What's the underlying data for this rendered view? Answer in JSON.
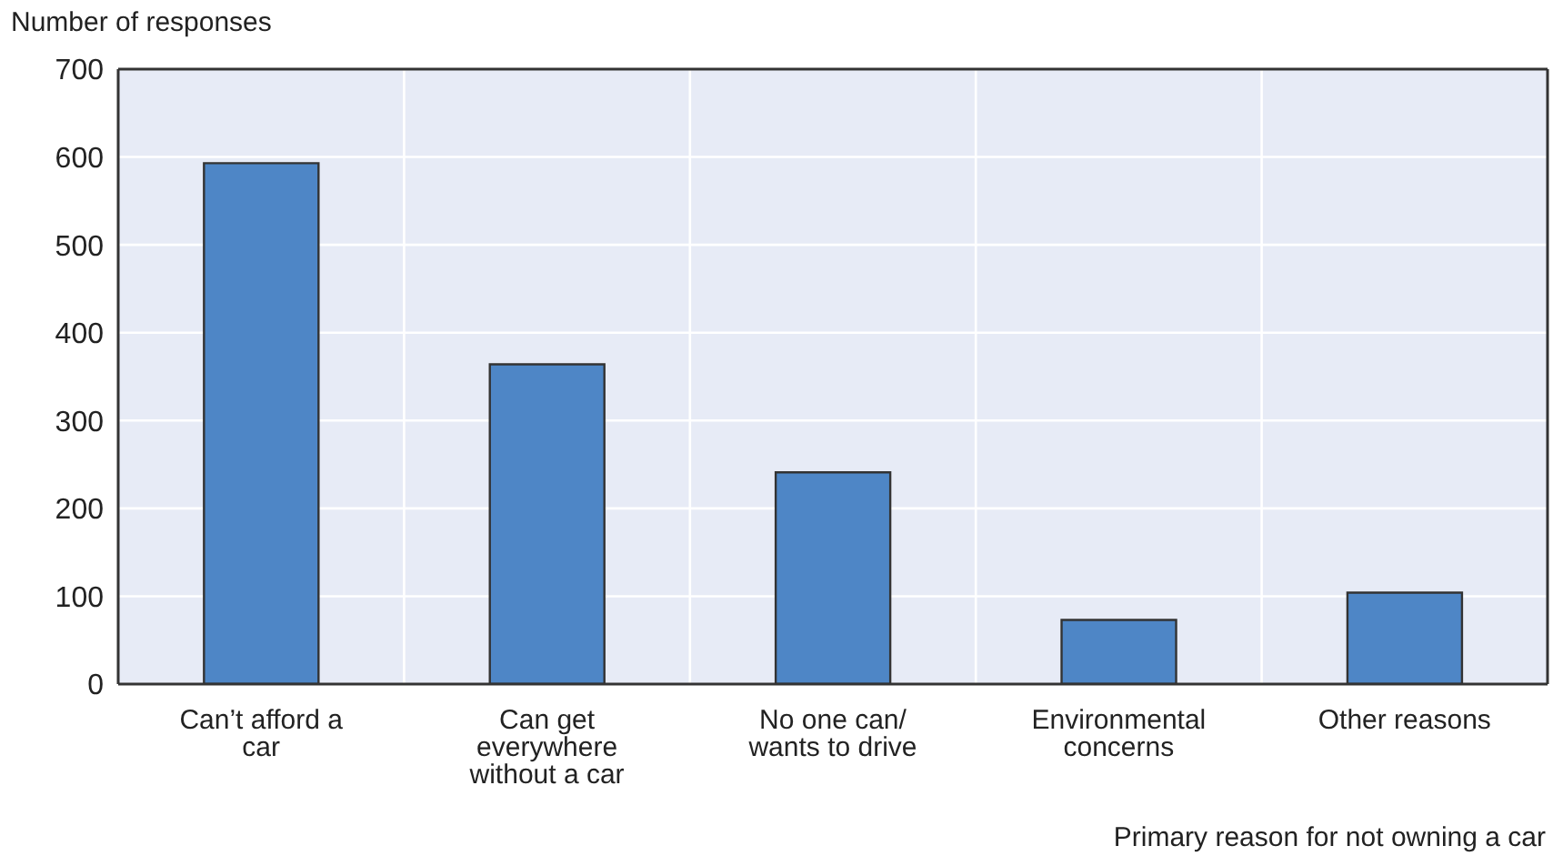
{
  "chart_data": {
    "type": "bar",
    "ylabel": "Number of responses",
    "xlabel": "Primary reason for not owning a car",
    "categories": [
      "Can’t afford a car",
      "Can get everywhere without a car",
      "No one can/ wants to drive",
      "Environmental concerns",
      "Other reasons"
    ],
    "values": [
      593,
      364,
      241,
      73,
      104
    ],
    "color": "#4e86c6",
    "ylim": [
      0,
      700
    ],
    "yticks": [
      0,
      100,
      200,
      300,
      400,
      500,
      600,
      700
    ],
    "grid": true
  }
}
